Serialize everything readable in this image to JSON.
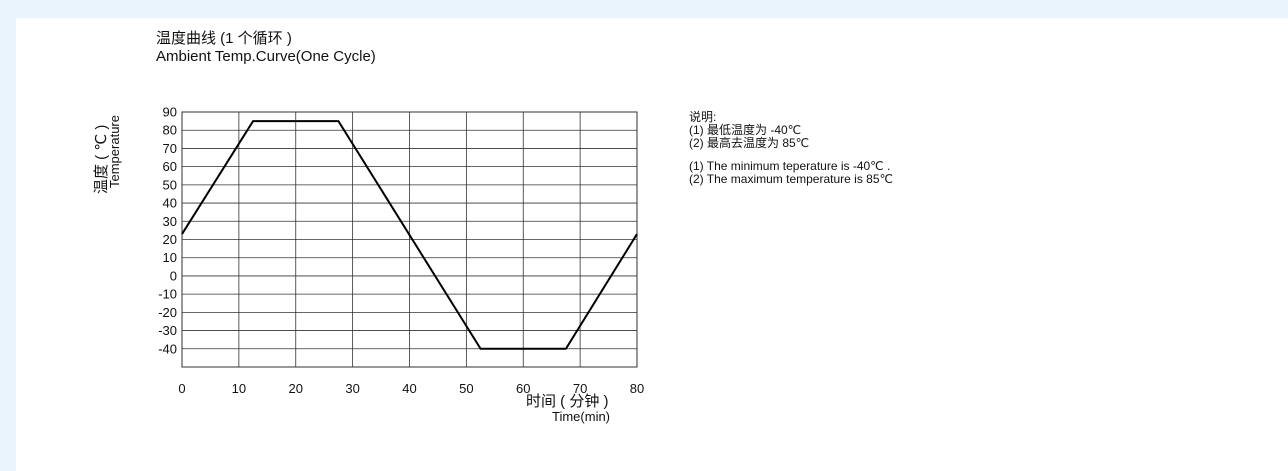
{
  "chart_data": {
    "type": "line",
    "title_cn": "温度曲线 (1 个循环 )",
    "title_en": "Ambient Temp.Curve(One Cycle)",
    "ylabel_cn": "温度 ( ℃ )",
    "ylabel_en": "Temperature",
    "xlabel_cn": "时间 ( 分钟 )",
    "xlabel_en": "Time(min)",
    "xlim": [
      0,
      80
    ],
    "ylim": [
      -50,
      90
    ],
    "xticks": [
      0,
      10,
      20,
      30,
      40,
      50,
      60,
      70,
      80
    ],
    "yticks": [
      90,
      80,
      70,
      60,
      50,
      40,
      30,
      20,
      10,
      0,
      -10,
      -20,
      -30,
      -40
    ],
    "grid": true,
    "series": [
      {
        "x": [
          0,
          12.5,
          27.5,
          52.5,
          67.5,
          80
        ],
        "y": [
          23,
          85,
          85,
          -40,
          -40,
          23
        ]
      }
    ]
  },
  "notes": {
    "heading": "说明:",
    "cn_1": "(1) 最低温度为 -40℃",
    "cn_2": "(2) 最高去温度为 85℃",
    "en_1": "(1) The minimum teperature is -40℃ .",
    "en_2": "(2) The maximum temperature is 85℃"
  },
  "colors": {
    "background": "#eaf4fc",
    "panel": "#ffffff",
    "line": "#000000",
    "grid": "#333333"
  }
}
